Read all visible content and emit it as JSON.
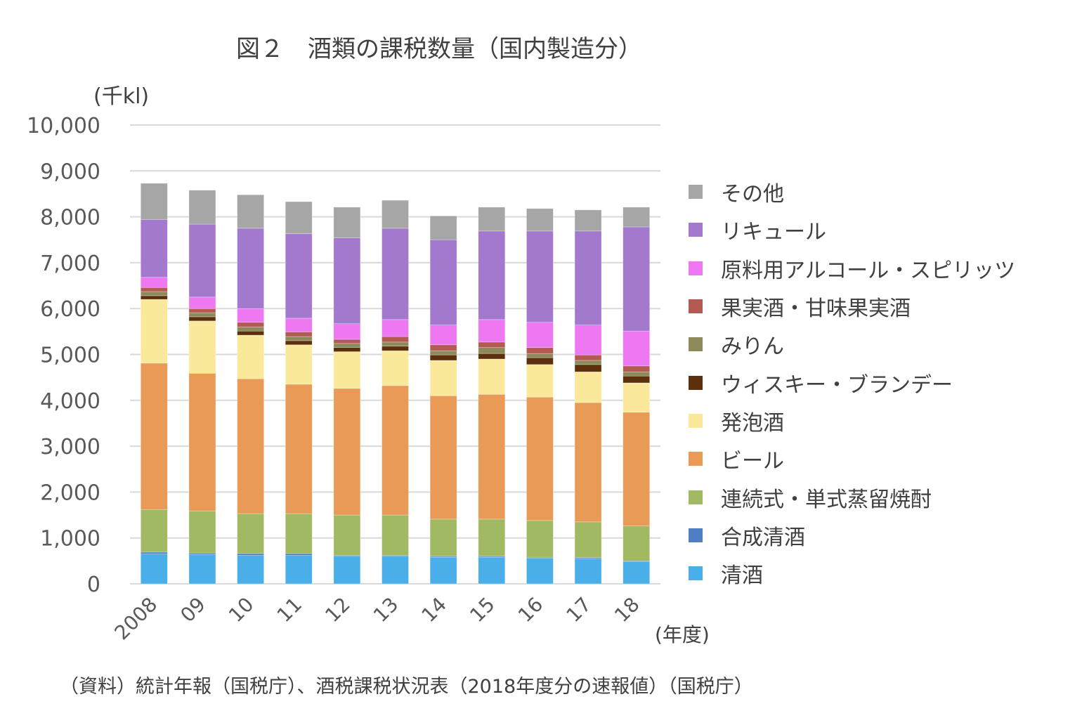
{
  "chart_data": {
    "type": "bar",
    "stacked": true,
    "title": "図２　酒類の課税数量（国内製造分）",
    "ylabel": "(千kl)",
    "xlabel": "(年度)",
    "ylim": [
      0,
      10000
    ],
    "yticks": [
      "0",
      "1,000",
      "2,000",
      "3,000",
      "4,000",
      "5,000",
      "6,000",
      "7,000",
      "8,000",
      "9,000",
      "10,000"
    ],
    "grid": true,
    "legend": "right",
    "categories": [
      "2008",
      "09",
      "10",
      "11",
      "12",
      "13",
      "14",
      "15",
      "16",
      "17",
      "18"
    ],
    "series": [
      {
        "name": "清酒",
        "color": "#4aaee8",
        "values": [
          650,
          640,
          620,
          620,
          600,
          600,
          580,
          580,
          560,
          550,
          480
        ]
      },
      {
        "name": "合成清酒",
        "color": "#4f7fc0",
        "values": [
          40,
          30,
          40,
          40,
          20,
          20,
          20,
          20,
          20,
          20,
          20
        ]
      },
      {
        "name": "連続式・単式蒸留焼酎",
        "color": "#a2b963",
        "values": [
          930,
          920,
          870,
          870,
          880,
          880,
          810,
          810,
          800,
          780,
          760
        ]
      },
      {
        "name": "ビール",
        "color": "#e99a56",
        "values": [
          3190,
          3000,
          2940,
          2820,
          2760,
          2820,
          2690,
          2720,
          2690,
          2600,
          2480
        ]
      },
      {
        "name": "発泡酒",
        "color": "#fae99a",
        "values": [
          1390,
          1140,
          950,
          860,
          800,
          760,
          770,
          770,
          710,
          670,
          640
        ]
      },
      {
        "name": "ウィスキー・ブランデー",
        "color": "#5c300c",
        "values": [
          80,
          90,
          90,
          90,
          90,
          100,
          120,
          120,
          150,
          160,
          150
        ]
      },
      {
        "name": "みりん",
        "color": "#8c8a5a",
        "values": [
          90,
          90,
          90,
          90,
          90,
          90,
          90,
          130,
          90,
          90,
          90
        ]
      },
      {
        "name": "果実酒・甘味果実酒",
        "color": "#b35a52",
        "values": [
          90,
          90,
          100,
          100,
          90,
          120,
          130,
          120,
          130,
          120,
          130
        ]
      },
      {
        "name": "原料用アルコール・スピリッツ",
        "color": "#ee77f2",
        "values": [
          220,
          250,
          300,
          300,
          340,
          370,
          430,
          490,
          550,
          650,
          760
        ]
      },
      {
        "name": "リキュール",
        "color": "#a279cc",
        "values": [
          1260,
          1590,
          1750,
          1840,
          1870,
          1990,
          1860,
          1930,
          1990,
          2050,
          2270
        ]
      },
      {
        "name": "その他",
        "color": "#a6a6a6",
        "values": [
          790,
          740,
          730,
          700,
          670,
          610,
          520,
          520,
          490,
          460,
          430
        ]
      }
    ],
    "source": "（資料）統計年報（国税庁）、酒税課税状況表（2018年度分の速報値）（国税庁）"
  }
}
